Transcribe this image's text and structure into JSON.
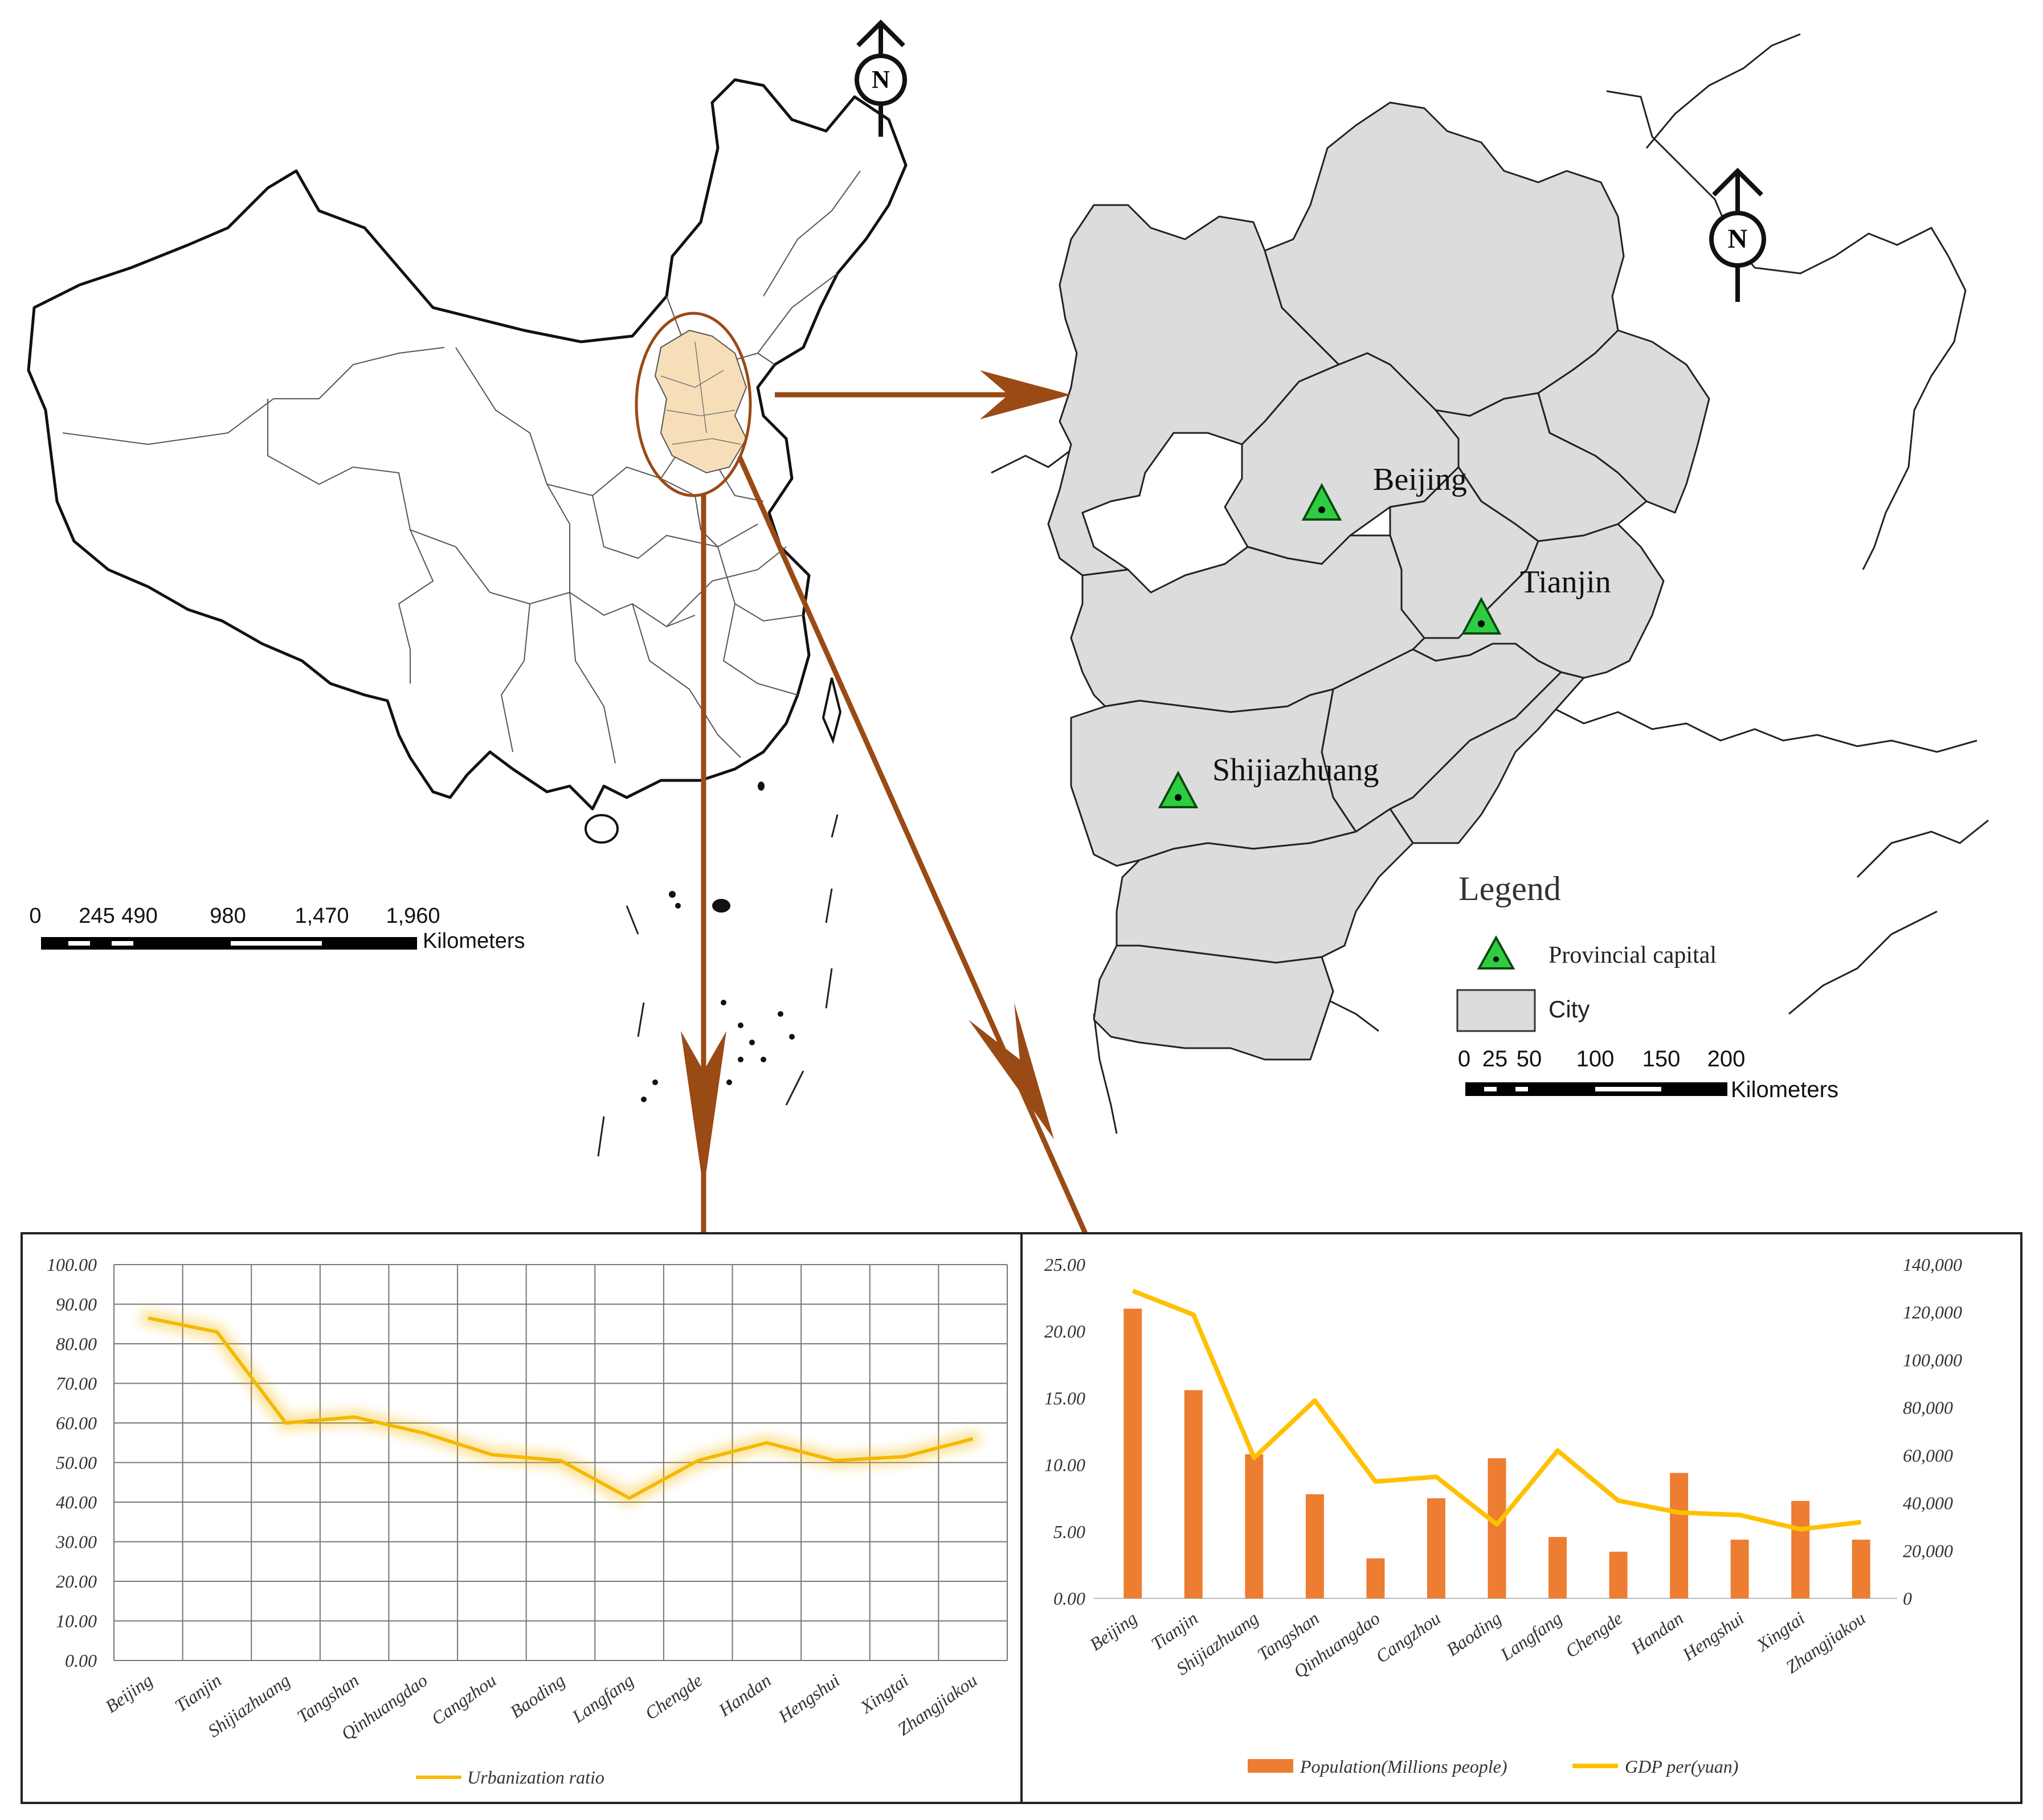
{
  "china_map": {
    "north_label": "N",
    "scale_bar": {
      "ticks": [
        "0",
        "245",
        "490",
        "980",
        "1,470",
        "1,960"
      ],
      "unit": "Kilometers"
    }
  },
  "region_map": {
    "north_label": "N",
    "cities": [
      {
        "name": "Beijing"
      },
      {
        "name": "Tianjin"
      },
      {
        "name": "Shijiazhuang"
      }
    ],
    "legend": {
      "title": "Legend",
      "items": [
        "Provincial capital",
        "City"
      ]
    },
    "scale_bar": {
      "ticks": [
        "0",
        "25",
        "50",
        "100",
        "150",
        "200"
      ],
      "unit": "Kilometers"
    },
    "colors": {
      "capital": "#2ecc40",
      "city_fill": "#dcdcdc",
      "highlight": "#f6dfb8",
      "arrow": "#9a4a15"
    }
  },
  "chart_data": [
    {
      "type": "line",
      "categories": [
        "Beijing",
        "Tianjin",
        "Shijiazhuang",
        "Tangshan",
        "Qinhuangdao",
        "Cangzhou",
        "Baoding",
        "Langfang",
        "Chengde",
        "Handan",
        "Hengshui",
        "Xingtai",
        "Zhangjiakou"
      ],
      "series": [
        {
          "name": "Urbanization ratio",
          "values": [
            86.5,
            83.0,
            60.0,
            61.5,
            57.5,
            52.0,
            50.5,
            41.0,
            50.5,
            55.0,
            50.5,
            51.5,
            56.0
          ],
          "color": "#f5b800"
        }
      ],
      "y_ticks": [
        "0.00",
        "10.00",
        "20.00",
        "30.00",
        "40.00",
        "50.00",
        "60.00",
        "70.00",
        "80.00",
        "90.00",
        "100.00"
      ],
      "ylim": [
        0,
        100
      ],
      "grid": true,
      "legend": "bottom"
    },
    {
      "type": "bar",
      "categories": [
        "Beijing",
        "Tianjin",
        "Shijiazhuang",
        "Tangshan",
        "Qinhuangdao",
        "Cangzhou",
        "Baoding",
        "Langfang",
        "Chengde",
        "Handan",
        "Hengshui",
        "Xingtai",
        "Zhangjiakou"
      ],
      "series": [
        {
          "name": "Population(Millions people)",
          "type": "bar",
          "axis": "left",
          "values": [
            21.7,
            15.6,
            10.8,
            7.8,
            3.0,
            7.5,
            10.5,
            4.6,
            3.5,
            9.4,
            4.4,
            7.3,
            4.4
          ],
          "color": "#ed7d31"
        },
        {
          "name": "GDP per(yuan)",
          "type": "line",
          "axis": "right",
          "values": [
            129000,
            119000,
            59000,
            83000,
            49000,
            51000,
            31000,
            62000,
            41000,
            36000,
            35000,
            29000,
            32000
          ],
          "color": "#ffc000"
        }
      ],
      "y_left_ticks": [
        "0.00",
        "5.00",
        "10.00",
        "15.00",
        "20.00",
        "25.00"
      ],
      "y_right_ticks": [
        "0",
        "20,000",
        "40,000",
        "60,000",
        "80,000",
        "100,000",
        "120,000",
        "140,000"
      ],
      "ylim_left": [
        0,
        25
      ],
      "ylim_right": [
        0,
        140000
      ],
      "grid": false,
      "legend": "bottom"
    }
  ]
}
